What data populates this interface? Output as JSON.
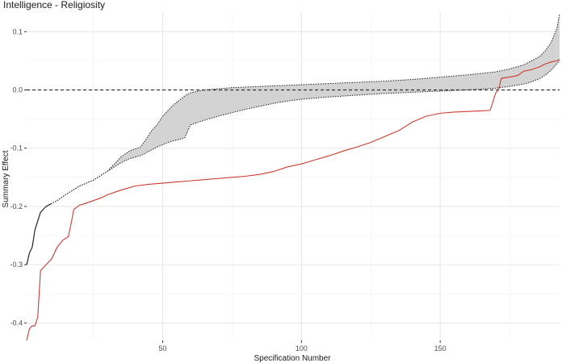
{
  "chart_data": {
    "type": "line",
    "title": "Intelligence - Religiosity",
    "xlabel": "Specification Number",
    "ylabel": "Summary Effect",
    "xlim": [
      1,
      193
    ],
    "ylim": [
      -0.43,
      0.135
    ],
    "xticks": [
      50,
      100,
      150
    ],
    "xtick_labels": [
      "50",
      "100",
      "150"
    ],
    "yticks": [
      -0.4,
      -0.3,
      -0.2,
      -0.1,
      0.0,
      0.1
    ],
    "ytick_labels": [
      "-0.4",
      "-0.3",
      "-0.2",
      "-0.1",
      "0.0",
      "0.1"
    ],
    "grid": true,
    "reference_line": {
      "y": 0,
      "style": "dashed",
      "color": "#333333"
    },
    "colors": {
      "summary_line": "#222222",
      "red_series": "#cc3b2f",
      "band_fill": "#d3d3d3",
      "bound_line": "#222222"
    },
    "series": [
      {
        "role": "summary_effect",
        "x": [
          1,
          2,
          3,
          4,
          6,
          8,
          10,
          12,
          15,
          20,
          25,
          30,
          35,
          38,
          42,
          44,
          46,
          48,
          50,
          52,
          54,
          56,
          58,
          60,
          65,
          70,
          75,
          80,
          85,
          90,
          95,
          100,
          110,
          120,
          130,
          140,
          150,
          160,
          170,
          175,
          180,
          183,
          186,
          188,
          190,
          192,
          193
        ],
        "y": [
          -0.3,
          -0.28,
          -0.27,
          -0.24,
          -0.21,
          -0.2,
          -0.195,
          -0.19,
          -0.18,
          -0.165,
          -0.155,
          -0.14,
          -0.12,
          -0.11,
          -0.105,
          -0.095,
          -0.085,
          -0.075,
          -0.065,
          -0.055,
          -0.045,
          -0.04,
          -0.035,
          -0.03,
          -0.023,
          -0.017,
          -0.012,
          -0.008,
          -0.004,
          -0.001,
          0.001,
          0.002,
          0.004,
          0.006,
          0.008,
          0.01,
          0.012,
          0.015,
          0.019,
          0.022,
          0.026,
          0.03,
          0.036,
          0.042,
          0.05,
          0.06,
          0.07
        ]
      },
      {
        "role": "lower_bound",
        "x": [
          1,
          2,
          3,
          4,
          6,
          8,
          10,
          12,
          15,
          20,
          25,
          30,
          35,
          38,
          42,
          44,
          46,
          48,
          50,
          52,
          54,
          56,
          58,
          60,
          65,
          70,
          75,
          80,
          85,
          90,
          95,
          100,
          110,
          120,
          130,
          140,
          150,
          160,
          170,
          175,
          180,
          183,
          186,
          188,
          190,
          192,
          193
        ],
        "y": [
          -0.3,
          -0.28,
          -0.27,
          -0.24,
          -0.21,
          -0.2,
          -0.195,
          -0.19,
          -0.18,
          -0.165,
          -0.155,
          -0.14,
          -0.125,
          -0.118,
          -0.113,
          -0.108,
          -0.103,
          -0.098,
          -0.094,
          -0.09,
          -0.087,
          -0.085,
          -0.082,
          -0.06,
          -0.052,
          -0.045,
          -0.039,
          -0.033,
          -0.028,
          -0.023,
          -0.019,
          -0.016,
          -0.012,
          -0.009,
          -0.006,
          -0.004,
          -0.002,
          0.0,
          0.003,
          0.006,
          0.01,
          0.014,
          0.02,
          0.026,
          0.034,
          0.045,
          0.05
        ]
      },
      {
        "role": "upper_bound",
        "x": [
          1,
          2,
          3,
          4,
          6,
          8,
          10,
          12,
          15,
          20,
          25,
          30,
          35,
          38,
          42,
          44,
          46,
          48,
          50,
          52,
          54,
          56,
          58,
          60,
          65,
          70,
          75,
          80,
          85,
          90,
          95,
          100,
          110,
          120,
          130,
          140,
          150,
          160,
          170,
          175,
          180,
          183,
          186,
          188,
          190,
          192,
          193
        ],
        "y": [
          -0.3,
          -0.28,
          -0.27,
          -0.24,
          -0.21,
          -0.2,
          -0.195,
          -0.19,
          -0.18,
          -0.165,
          -0.155,
          -0.14,
          -0.115,
          -0.105,
          -0.098,
          -0.085,
          -0.07,
          -0.06,
          -0.045,
          -0.035,
          -0.025,
          -0.018,
          -0.01,
          -0.005,
          0.0,
          0.002,
          0.004,
          0.005,
          0.006,
          0.007,
          0.008,
          0.009,
          0.011,
          0.013,
          0.015,
          0.018,
          0.022,
          0.026,
          0.031,
          0.036,
          0.043,
          0.05,
          0.058,
          0.068,
          0.082,
          0.105,
          0.13
        ]
      },
      {
        "role": "red_series",
        "x": [
          1,
          2,
          3,
          4,
          5,
          6,
          7,
          8,
          10,
          12,
          14,
          16,
          17,
          18,
          20,
          22,
          25,
          28,
          30,
          35,
          40,
          45,
          50,
          55,
          60,
          65,
          70,
          75,
          80,
          85,
          90,
          95,
          100,
          105,
          110,
          115,
          120,
          125,
          130,
          135,
          140,
          145,
          150,
          155,
          160,
          165,
          168,
          169,
          170,
          171,
          172,
          175,
          178,
          180,
          183,
          186,
          188,
          190,
          192,
          193
        ],
        "y": [
          -0.43,
          -0.41,
          -0.405,
          -0.405,
          -0.39,
          -0.31,
          -0.305,
          -0.3,
          -0.29,
          -0.27,
          -0.258,
          -0.252,
          -0.23,
          -0.205,
          -0.198,
          -0.195,
          -0.19,
          -0.185,
          -0.18,
          -0.172,
          -0.165,
          -0.162,
          -0.16,
          -0.158,
          -0.156,
          -0.154,
          -0.152,
          -0.15,
          -0.148,
          -0.145,
          -0.14,
          -0.132,
          -0.127,
          -0.12,
          -0.113,
          -0.105,
          -0.098,
          -0.09,
          -0.08,
          -0.07,
          -0.055,
          -0.045,
          -0.04,
          -0.038,
          -0.037,
          -0.036,
          -0.035,
          -0.02,
          -0.005,
          0.0,
          0.02,
          0.022,
          0.025,
          0.032,
          0.035,
          0.04,
          0.045,
          0.048,
          0.05,
          0.052
        ]
      }
    ]
  }
}
